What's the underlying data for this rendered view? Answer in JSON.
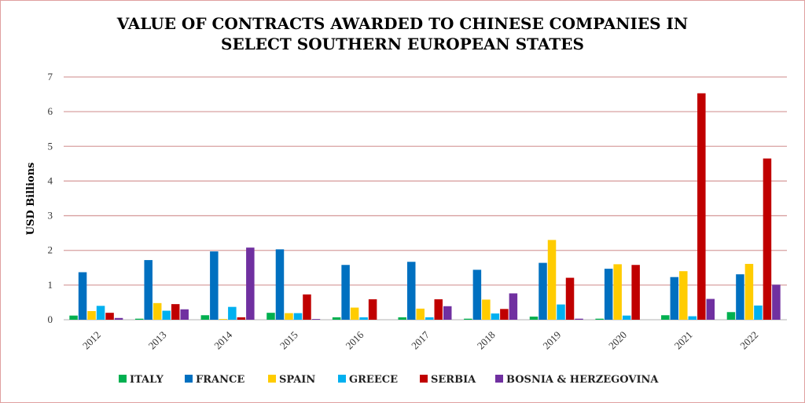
{
  "chart_data": {
    "type": "bar",
    "title_line1": "VALUE OF CONTRACTS AWARDED TO CHINESE COMPANIES IN",
    "title_line2": "SELECT SOUTHERN EUROPEAN STATES",
    "xlabel": "",
    "ylabel": "USD Billions",
    "ylim": [
      0,
      7
    ],
    "yticks": [
      "0",
      "1",
      "2",
      "3",
      "4",
      "5",
      "6",
      "7"
    ],
    "grid": true,
    "legend_placement": "bottom",
    "categories": [
      "2012",
      "2013",
      "2014",
      "2015",
      "2016",
      "2017",
      "2018",
      "2019",
      "2020",
      "2021",
      "2022"
    ],
    "series": [
      {
        "name": "ITALY",
        "color": "#00b050",
        "values": [
          0.12,
          0.03,
          0.13,
          0.2,
          0.07,
          0.07,
          0.03,
          0.09,
          0.03,
          0.13,
          0.22
        ]
      },
      {
        "name": "FRANCE",
        "color": "#0070c0",
        "values": [
          1.37,
          1.72,
          1.97,
          2.03,
          1.58,
          1.67,
          1.44,
          1.64,
          1.47,
          1.23,
          1.31
        ]
      },
      {
        "name": "SPAIN",
        "color": "#ffcc00",
        "values": [
          0.25,
          0.48,
          0.02,
          0.19,
          0.35,
          0.32,
          0.58,
          2.3,
          1.6,
          1.4,
          1.61
        ]
      },
      {
        "name": "GREECE",
        "color": "#00b0f0",
        "values": [
          0.4,
          0.26,
          0.37,
          0.19,
          0.07,
          0.07,
          0.18,
          0.44,
          0.12,
          0.1,
          0.41
        ]
      },
      {
        "name": "SERBIA",
        "color": "#c00000",
        "values": [
          0.2,
          0.45,
          0.07,
          0.73,
          0.59,
          0.59,
          0.31,
          1.21,
          1.58,
          6.53,
          4.65
        ]
      },
      {
        "name": "BOSNIA & HERZEGOVINA",
        "color": "#7030a0",
        "values": [
          0.05,
          0.3,
          2.08,
          0.02,
          0,
          0.39,
          0.76,
          0.03,
          0,
          0.6,
          1.01
        ]
      }
    ]
  }
}
